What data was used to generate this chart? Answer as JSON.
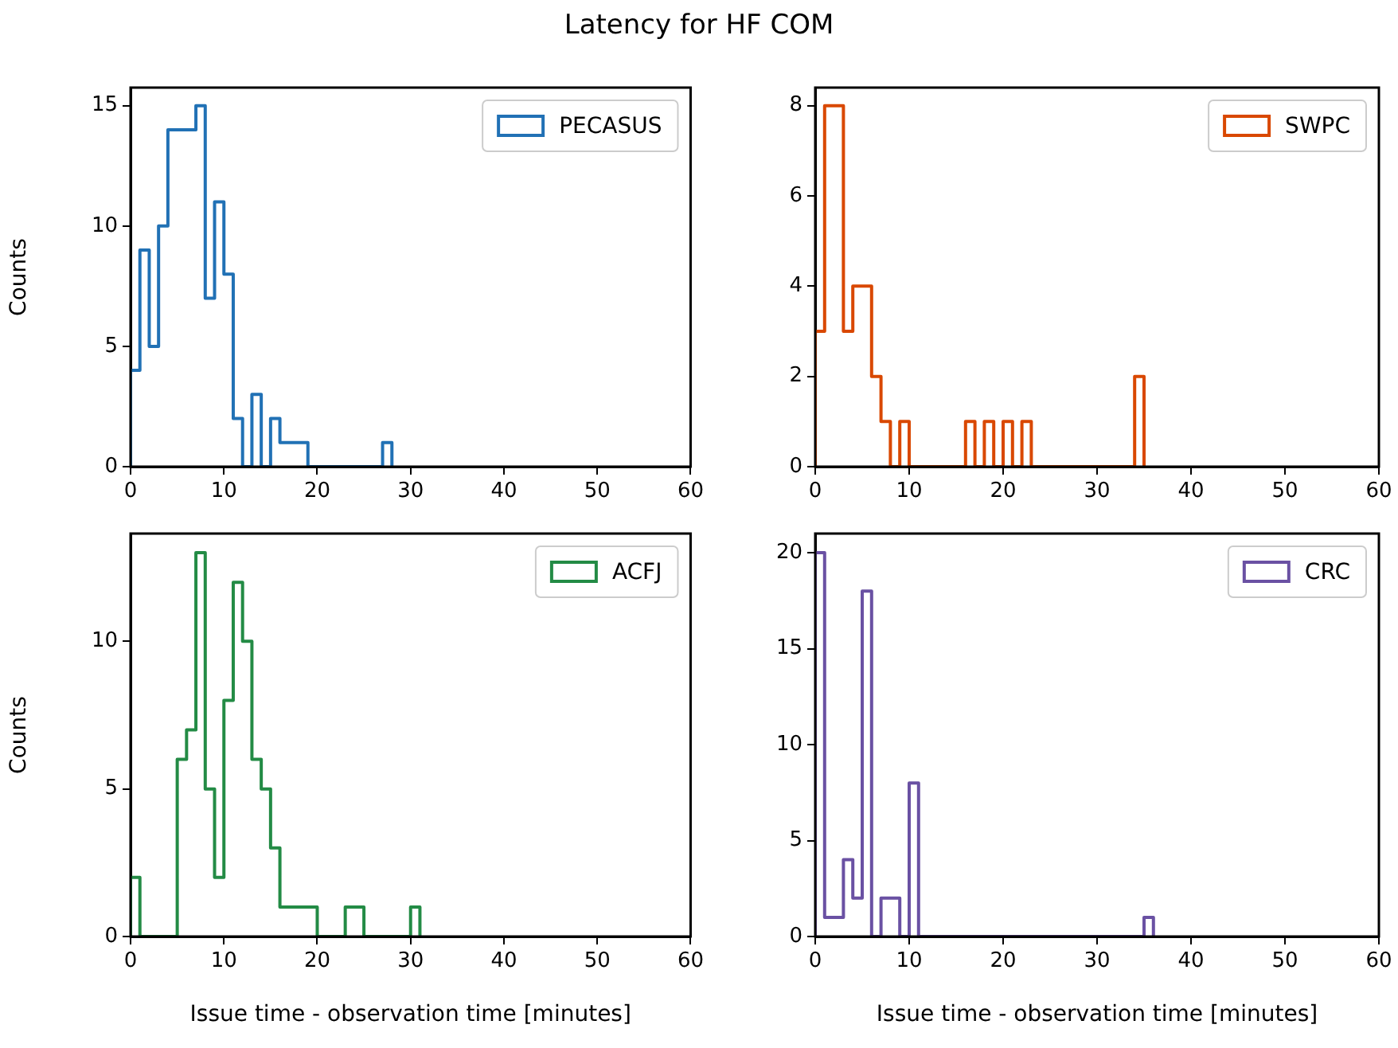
{
  "chart_data": [
    {
      "type": "histogram",
      "title": "Latency for HF COM",
      "ylabel": "Counts",
      "bins": [
        0,
        1,
        2,
        3,
        4,
        5,
        6,
        7,
        8,
        9,
        10,
        11,
        12,
        13,
        14,
        15,
        16,
        17,
        18,
        19,
        20,
        21,
        22,
        23,
        24,
        25,
        26,
        27,
        28
      ],
      "series": [
        {
          "name": "PECASUS",
          "color": "#2171b5",
          "values": [
            4,
            9,
            5,
            10,
            14,
            14,
            14,
            15,
            7,
            11,
            8,
            2,
            0,
            3,
            0,
            2,
            1,
            1,
            1,
            0,
            0,
            0,
            0,
            0,
            0,
            0,
            0,
            1
          ]
        }
      ],
      "xlim": [
        0,
        60
      ],
      "xticks": [
        0,
        10,
        20,
        30,
        40,
        50,
        60
      ],
      "ylim": [
        0,
        15.75
      ],
      "yticks": [
        0,
        5,
        10,
        15
      ],
      "legend": "top right",
      "marker": "none",
      "line_style": "solid"
    },
    {
      "type": "histogram",
      "bins": [
        0,
        1,
        2,
        3,
        4,
        5,
        6,
        7,
        8,
        9,
        10,
        11,
        12,
        13,
        14,
        15,
        16,
        17,
        18,
        19,
        20,
        21,
        22,
        23,
        24,
        25,
        26,
        27,
        28,
        29,
        30,
        31,
        32,
        33,
        34,
        35
      ],
      "series": [
        {
          "name": "SWPC",
          "color": "#d94801",
          "values": [
            3,
            8,
            8,
            3,
            4,
            4,
            2,
            1,
            0,
            1,
            0,
            0,
            0,
            0,
            0,
            0,
            1,
            0,
            1,
            0,
            1,
            0,
            1,
            0,
            0,
            0,
            0,
            0,
            0,
            0,
            0,
            0,
            0,
            0,
            2
          ]
        }
      ],
      "xlim": [
        0,
        60
      ],
      "xticks": [
        0,
        10,
        20,
        30,
        40,
        50,
        60
      ],
      "ylim": [
        0,
        8.4
      ],
      "yticks": [
        0,
        2,
        4,
        6,
        8
      ],
      "legend": "top right",
      "marker": "none",
      "line_style": "solid"
    },
    {
      "type": "histogram",
      "xlabel": "Issue time - observation time [minutes]",
      "ylabel": "Counts",
      "bins": [
        0,
        1,
        2,
        3,
        4,
        5,
        6,
        7,
        8,
        9,
        10,
        11,
        12,
        13,
        14,
        15,
        16,
        17,
        18,
        19,
        20,
        21,
        22,
        23,
        24,
        25,
        26,
        27,
        28,
        29,
        30,
        31
      ],
      "series": [
        {
          "name": "ACFJ",
          "color": "#238b45",
          "values": [
            2,
            0,
            0,
            0,
            0,
            6,
            7,
            13,
            5,
            2,
            8,
            12,
            10,
            6,
            5,
            3,
            1,
            1,
            1,
            1,
            0,
            0,
            0,
            1,
            1,
            0,
            0,
            0,
            0,
            0,
            1
          ]
        }
      ],
      "xlim": [
        0,
        60
      ],
      "xticks": [
        0,
        10,
        20,
        30,
        40,
        50,
        60
      ],
      "ylim": [
        0,
        13.65
      ],
      "yticks": [
        0,
        5,
        10
      ],
      "legend": "top right",
      "marker": "none",
      "line_style": "solid"
    },
    {
      "type": "histogram",
      "xlabel": "Issue time - observation time [minutes]",
      "bins": [
        0,
        1,
        2,
        3,
        4,
        5,
        6,
        7,
        8,
        9,
        10,
        11,
        12,
        13,
        14,
        15,
        16,
        17,
        18,
        19,
        20,
        21,
        22,
        23,
        24,
        25,
        26,
        27,
        28,
        29,
        30,
        31,
        32,
        33,
        34,
        35,
        36
      ],
      "series": [
        {
          "name": "CRC",
          "color": "#6a51a3",
          "values": [
            20,
            1,
            1,
            4,
            2,
            18,
            0,
            2,
            2,
            0,
            8,
            0,
            0,
            0,
            0,
            0,
            0,
            0,
            0,
            0,
            0,
            0,
            0,
            0,
            0,
            0,
            0,
            0,
            0,
            0,
            0,
            0,
            0,
            0,
            0,
            1
          ]
        }
      ],
      "xlim": [
        0,
        60
      ],
      "xticks": [
        0,
        10,
        20,
        30,
        40,
        50,
        60
      ],
      "ylim": [
        0,
        21
      ],
      "yticks": [
        0,
        5,
        10,
        15,
        20
      ],
      "legend": "top right",
      "marker": "none",
      "line_style": "solid"
    }
  ]
}
